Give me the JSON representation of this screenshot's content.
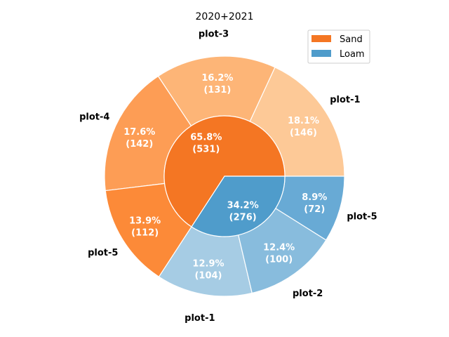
{
  "chart_data": {
    "type": "pie",
    "title": "2020+2021",
    "legend": {
      "placement": "top-right",
      "entries": [
        "Sand",
        "Loam"
      ]
    },
    "inner": [
      {
        "name": "Sand",
        "value": 531,
        "pct": "65.8%",
        "color": "#f47623"
      },
      {
        "name": "Loam",
        "value": 276,
        "pct": "34.2%",
        "color": "#4f9ccb"
      }
    ],
    "outer": [
      {
        "group": "Sand",
        "label": "plot-1",
        "value": 146,
        "pct": "18.1%",
        "color": "#fdc997"
      },
      {
        "group": "Sand",
        "label": "plot-3",
        "value": 131,
        "pct": "16.2%",
        "color": "#fdb577"
      },
      {
        "group": "Sand",
        "label": "plot-4",
        "value": 142,
        "pct": "17.6%",
        "color": "#fd9d55"
      },
      {
        "group": "Sand",
        "label": "plot-5",
        "value": 112,
        "pct": "13.9%",
        "color": "#fc8a38"
      },
      {
        "group": "Loam",
        "label": "plot-1",
        "value": 104,
        "pct": "12.9%",
        "color": "#a6cce4"
      },
      {
        "group": "Loam",
        "label": "plot-2",
        "value": 100,
        "pct": "12.4%",
        "color": "#88bcdd"
      },
      {
        "group": "Loam",
        "label": "plot-5",
        "value": 72,
        "pct": "8.9%",
        "color": "#68aad5"
      }
    ]
  }
}
